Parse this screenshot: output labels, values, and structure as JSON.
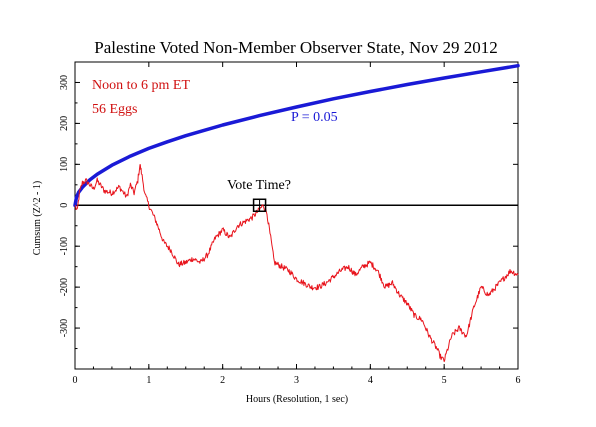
{
  "chart_data": {
    "type": "line",
    "title": "Palestine Voted Non-Member Observer State, Nov 29 2012",
    "xlabel": "Hours (Resolution, 1 sec)",
    "ylabel": "Cumsum (Z^2 - 1)",
    "xlim": [
      0,
      6
    ],
    "ylim": [
      -400,
      350
    ],
    "x_ticks": [
      0,
      1,
      2,
      3,
      4,
      5,
      6
    ],
    "y_ticks": [
      -300,
      -200,
      -100,
      0,
      100,
      200,
      300
    ],
    "grid": false,
    "annotations": {
      "period": "Noon to 6 pm ET",
      "eggs": "56 Eggs",
      "p_label": "P = 0.05",
      "vote_label": "Vote Time?",
      "vote_time_hours": 2.5,
      "vote_time_value": 0
    },
    "colors": {
      "cumsum": "#e8141c",
      "probability": "#1a1ad6",
      "baseline": "#000000",
      "annotation_text": "#d01010"
    },
    "series": [
      {
        "key": "probability",
        "x": [
          0,
          0.02,
          0.05,
          0.1,
          0.2,
          0.3,
          0.5,
          0.75,
          1.0,
          1.25,
          1.5,
          2.0,
          2.5,
          3.0,
          3.5,
          4.0,
          4.5,
          5.0,
          5.5,
          6.0
        ],
        "values": [
          0,
          20,
          32,
          44,
          62,
          76,
          98,
          120,
          139,
          155,
          170,
          196,
          219,
          240,
          260,
          278,
          295,
          311,
          326,
          341
        ]
      },
      {
        "key": "cumsum",
        "x": [
          0,
          0.03,
          0.06,
          0.1,
          0.15,
          0.2,
          0.25,
          0.3,
          0.4,
          0.5,
          0.6,
          0.7,
          0.75,
          0.8,
          0.85,
          0.88,
          0.9,
          0.95,
          1.0,
          1.1,
          1.2,
          1.3,
          1.4,
          1.5,
          1.6,
          1.7,
          1.8,
          1.9,
          2.0,
          2.1,
          2.2,
          2.3,
          2.4,
          2.5,
          2.55,
          2.6,
          2.65,
          2.7,
          2.8,
          2.9,
          3.0,
          3.1,
          3.2,
          3.3,
          3.4,
          3.5,
          3.6,
          3.7,
          3.8,
          3.9,
          4.0,
          4.1,
          4.2,
          4.3,
          4.4,
          4.5,
          4.6,
          4.7,
          4.8,
          4.9,
          4.95,
          5.0,
          5.05,
          5.1,
          5.2,
          5.3,
          5.4,
          5.5,
          5.6,
          5.7,
          5.8,
          5.9,
          6.0
        ],
        "values": [
          0,
          -15,
          30,
          55,
          60,
          50,
          40,
          60,
          35,
          30,
          45,
          20,
          50,
          30,
          60,
          100,
          80,
          25,
          0,
          -40,
          -90,
          -110,
          -145,
          -140,
          -130,
          -140,
          -120,
          -80,
          -60,
          -80,
          -50,
          -40,
          -30,
          -10,
          0,
          -20,
          -80,
          -140,
          -150,
          -160,
          -180,
          -190,
          -200,
          -200,
          -190,
          -175,
          -160,
          -150,
          -170,
          -150,
          -140,
          -160,
          -200,
          -190,
          -220,
          -240,
          -270,
          -280,
          -320,
          -350,
          -370,
          -380,
          -350,
          -320,
          -300,
          -320,
          -250,
          -200,
          -220,
          -200,
          -180,
          -160,
          -170
        ]
      }
    ]
  }
}
